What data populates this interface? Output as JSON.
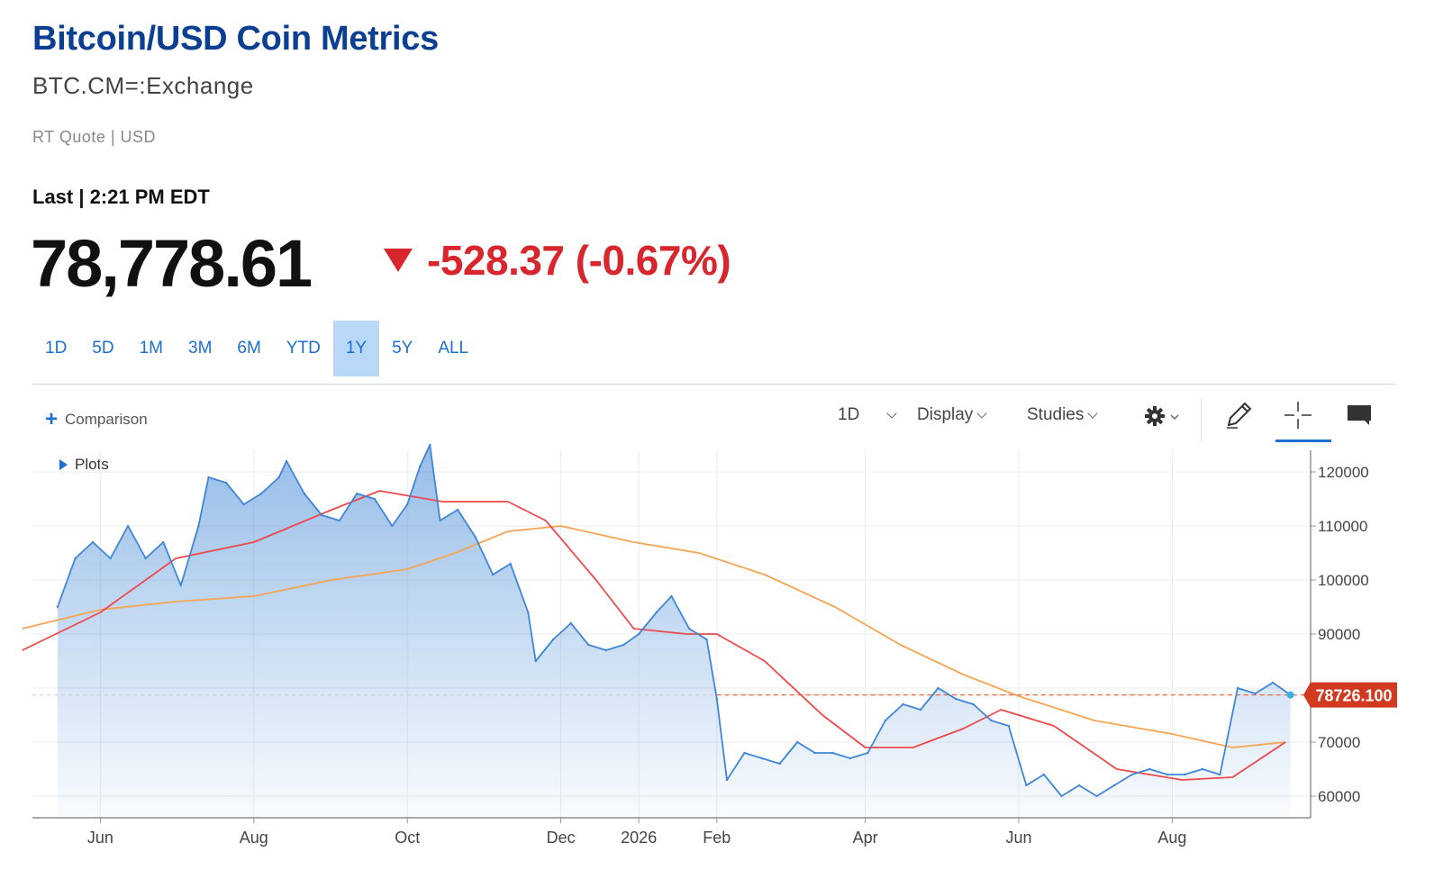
{
  "header": {
    "title": "Bitcoin/USD Coin Metrics",
    "symbol": "BTC.CM=:Exchange",
    "quote_type": "RT Quote | USD",
    "last_label": "Last | 2:21 PM EDT",
    "price": "78,778.61",
    "change": "-528.37 (-0.67%)",
    "change_direction": "down",
    "down_color": "#d7262d"
  },
  "ranges": {
    "items": [
      "1D",
      "5D",
      "1M",
      "3M",
      "6M",
      "YTD",
      "1Y",
      "5Y",
      "ALL"
    ],
    "active": "1Y"
  },
  "toolbar": {
    "comparison_label": "Comparison",
    "interval_label": "1D",
    "display_label": "Display",
    "studies_label": "Studies",
    "plots_label": "Plots",
    "icons": [
      "gear-icon",
      "pencil-icon",
      "crosshair-icon",
      "comment-icon"
    ]
  },
  "chart_data": {
    "type": "area",
    "x_ticks": [
      "Jun",
      "Aug",
      "Oct",
      "Dec",
      "2026",
      "Feb",
      "Apr",
      "Jun",
      "Aug"
    ],
    "y_ticks": [
      60000,
      70000,
      80000,
      90000,
      100000,
      110000,
      120000
    ],
    "ylim": [
      56000,
      124000
    ],
    "grid": true,
    "last_value_label": "78726.100",
    "last_value": 78726.1,
    "colors": {
      "price": "#3f86d6",
      "ma_fast": "#ec4a4a",
      "ma_slow": "#f5a452",
      "last_label_bg": "#d13a1e"
    },
    "series": [
      {
        "name": "",
        "role": "price",
        "x": [
          "2025-05-15",
          "2025-05-22",
          "2025-05-29",
          "2025-06-05",
          "2025-06-12",
          "2025-06-19",
          "2025-06-26",
          "2025-07-03",
          "2025-07-10",
          "2025-07-14",
          "2025-07-21",
          "2025-07-28",
          "2025-08-04",
          "2025-08-11",
          "2025-08-14",
          "2025-08-21",
          "2025-08-28",
          "2025-09-04",
          "2025-09-11",
          "2025-09-18",
          "2025-09-25",
          "2025-10-01",
          "2025-10-06",
          "2025-10-10",
          "2025-10-14",
          "2025-10-21",
          "2025-10-28",
          "2025-11-04",
          "2025-11-11",
          "2025-11-18",
          "2025-11-21",
          "2025-11-28",
          "2025-12-05",
          "2025-12-12",
          "2025-12-19",
          "2025-12-26",
          "2026-01-01",
          "2026-01-08",
          "2026-01-14",
          "2026-01-21",
          "2026-01-28",
          "2026-02-01",
          "2026-02-05",
          "2026-02-12",
          "2026-02-19",
          "2026-02-26",
          "2026-03-05",
          "2026-03-12",
          "2026-03-19",
          "2026-03-26",
          "2026-04-02",
          "2026-04-09",
          "2026-04-16",
          "2026-04-23",
          "2026-04-30",
          "2026-05-07",
          "2026-05-14",
          "2026-05-21",
          "2026-05-28",
          "2026-06-04",
          "2026-06-11",
          "2026-06-18",
          "2026-06-25",
          "2026-07-02",
          "2026-07-09",
          "2026-07-16",
          "2026-07-23",
          "2026-07-30",
          "2026-08-06",
          "2026-08-13",
          "2026-08-20",
          "2026-08-27",
          "2026-09-03",
          "2026-09-10",
          "2026-09-17"
        ],
        "values": [
          95000,
          104000,
          107000,
          104000,
          110000,
          104000,
          107000,
          99000,
          110000,
          119000,
          118000,
          114000,
          116000,
          119000,
          122000,
          116000,
          112000,
          111000,
          116000,
          115000,
          110000,
          114000,
          121000,
          125000,
          111000,
          113000,
          108000,
          101000,
          103000,
          94000,
          85000,
          89000,
          92000,
          88000,
          87000,
          88000,
          90000,
          94000,
          97000,
          91000,
          89000,
          78000,
          63000,
          68000,
          67000,
          66000,
          70000,
          68000,
          68000,
          67000,
          68000,
          74000,
          77000,
          76000,
          80000,
          78000,
          77000,
          74000,
          73000,
          62000,
          64000,
          60000,
          62000,
          60000,
          62000,
          64000,
          65000,
          64000,
          64000,
          65000,
          64000,
          80000,
          79000,
          81000,
          78726
        ]
      },
      {
        "name": "",
        "role": "ma_fast",
        "x": [
          "2025-05-01",
          "2025-06-01",
          "2025-07-01",
          "2025-08-01",
          "2025-09-01",
          "2025-09-20",
          "2025-10-15",
          "2025-11-10",
          "2025-11-25",
          "2025-12-15",
          "2025-12-30",
          "2026-01-20",
          "2026-02-01",
          "2026-02-20",
          "2026-03-15",
          "2026-04-01",
          "2026-04-20",
          "2026-05-10",
          "2026-05-25",
          "2026-06-15",
          "2026-07-10",
          "2026-08-05",
          "2026-08-25",
          "2026-09-15"
        ],
        "values": [
          87000,
          94000,
          104000,
          107000,
          113000,
          116500,
          114500,
          114500,
          111000,
          100000,
          91000,
          90000,
          90000,
          85000,
          75000,
          69000,
          69000,
          72500,
          76000,
          73000,
          65000,
          63000,
          63500,
          70000
        ]
      },
      {
        "name": "",
        "role": "ma_slow",
        "x": [
          "2025-05-01",
          "2025-06-01",
          "2025-07-01",
          "2025-08-01",
          "2025-09-01",
          "2025-10-01",
          "2025-10-20",
          "2025-11-10",
          "2025-12-01",
          "2025-12-30",
          "2026-01-25",
          "2026-02-20",
          "2026-03-20",
          "2026-04-15",
          "2026-05-10",
          "2026-06-01",
          "2026-07-01",
          "2026-08-01",
          "2026-08-25",
          "2026-09-15"
        ],
        "values": [
          91000,
          94500,
          96000,
          97000,
          100000,
          102000,
          105000,
          109000,
          110000,
          107000,
          105000,
          101000,
          95000,
          88000,
          82500,
          78500,
          74000,
          71500,
          69000,
          70000
        ]
      }
    ]
  }
}
